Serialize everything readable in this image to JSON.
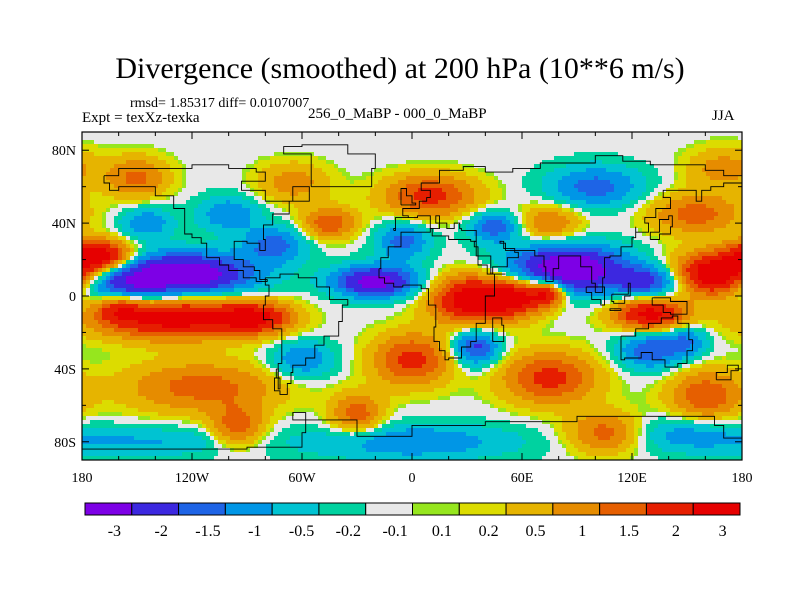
{
  "title": "Divergence (smoothed) at 200 hPa (10**6 m/s)",
  "stats_text": "rmsd= 1.85317 diff= 0.0107007",
  "left_label": "Expt = texXz-texka",
  "center_label": "256_0_MaBP - 000_0_MaBP",
  "right_label": "JJA",
  "chart_data": {
    "type": "heatmap",
    "title": "Divergence (smoothed) at 200 hPa (10**6 m/s)",
    "variable": "200 hPa divergence difference (smoothed)",
    "units": "10**6 m/s",
    "season": "JJA",
    "xlim": [
      -180,
      180
    ],
    "ylim": [
      -90,
      90
    ],
    "x_ticks": [
      {
        "value": -180,
        "label": "180"
      },
      {
        "value": -120,
        "label": "120W"
      },
      {
        "value": -60,
        "label": "60W"
      },
      {
        "value": 0,
        "label": "0"
      },
      {
        "value": 60,
        "label": "60E"
      },
      {
        "value": 120,
        "label": "120E"
      },
      {
        "value": 180,
        "label": "180"
      }
    ],
    "y_ticks": [
      {
        "value": 80,
        "label": "80N"
      },
      {
        "value": 40,
        "label": "40N"
      },
      {
        "value": 0,
        "label": "0"
      },
      {
        "value": -40,
        "label": "40S"
      },
      {
        "value": -80,
        "label": "80S"
      }
    ],
    "colorbar": {
      "colors": [
        "#7d00e6",
        "#3c28e0",
        "#1e64e6",
        "#0096e6",
        "#00c3d2",
        "#00d2a0",
        "#e8e8e8",
        "#96e61e",
        "#dcdc00",
        "#e6b400",
        "#e68c00",
        "#e65f00",
        "#e61e00",
        "#e60000"
      ],
      "labels": [
        "-3",
        "-2",
        "-1.5",
        "-1",
        "-0.5",
        "-0.2",
        "-0.1",
        "0.1",
        "0.2",
        "0.5",
        "1",
        "1.5",
        "2",
        "3"
      ],
      "level_values": [
        -3,
        -2,
        -1.5,
        -1,
        -0.5,
        -0.2,
        -0.1,
        0.1,
        0.2,
        0.5,
        1,
        1.5,
        2,
        3
      ]
    },
    "features": [
      {
        "lon": -125,
        "lat": 12,
        "value": -3.5,
        "sx": 26,
        "sy": 8
      },
      {
        "lon": -160,
        "lat": 3,
        "value": -2.0,
        "sx": 15,
        "sy": 8
      },
      {
        "lon": -20,
        "lat": 8,
        "value": -3.0,
        "sx": 16,
        "sy": 6
      },
      {
        "lon": 85,
        "lat": 15,
        "value": -3.5,
        "sx": 22,
        "sy": 9
      },
      {
        "lon": 130,
        "lat": 8,
        "value": -2.0,
        "sx": 14,
        "sy": 6
      },
      {
        "lon": -5,
        "lat": 30,
        "value": -1.5,
        "sx": 10,
        "sy": 7
      },
      {
        "lon": 45,
        "lat": 38,
        "value": -1.6,
        "sx": 10,
        "sy": 6
      },
      {
        "lon": -75,
        "lat": 28,
        "value": -1.5,
        "sx": 12,
        "sy": 7
      },
      {
        "lon": -145,
        "lat": 40,
        "value": -1.2,
        "sx": 10,
        "sy": 6
      },
      {
        "lon": 100,
        "lat": 60,
        "value": -1.5,
        "sx": 18,
        "sy": 8
      },
      {
        "lon": -100,
        "lat": 45,
        "value": -1.2,
        "sx": 12,
        "sy": 7
      },
      {
        "lon": 35,
        "lat": -28,
        "value": -2.0,
        "sx": 9,
        "sy": 7
      },
      {
        "lon": 130,
        "lat": -30,
        "value": -1.7,
        "sx": 12,
        "sy": 7
      },
      {
        "lon": -60,
        "lat": -35,
        "value": -1.3,
        "sx": 12,
        "sy": 7
      },
      {
        "lon": 150,
        "lat": -25,
        "value": -1.2,
        "sx": 8,
        "sy": 6
      },
      {
        "lon": -150,
        "lat": -80,
        "value": -0.8,
        "sx": 40,
        "sy": 6
      },
      {
        "lon": 0,
        "lat": -80,
        "value": -1.2,
        "sx": 40,
        "sy": 7
      },
      {
        "lon": 150,
        "lat": -75,
        "value": -0.9,
        "sx": 20,
        "sy": 7
      },
      {
        "lon": -170,
        "lat": 22,
        "value": 3.2,
        "sx": 12,
        "sy": 6
      },
      {
        "lon": 165,
        "lat": 12,
        "value": 3.5,
        "sx": 16,
        "sy": 8
      },
      {
        "lon": -130,
        "lat": -12,
        "value": 3.0,
        "sx": 30,
        "sy": 8
      },
      {
        "lon": -160,
        "lat": -5,
        "value": 2.0,
        "sx": 10,
        "sy": 6
      },
      {
        "lon": -85,
        "lat": -12,
        "value": 2.2,
        "sx": 14,
        "sy": 6
      },
      {
        "lon": 35,
        "lat": -2,
        "value": 3.5,
        "sx": 16,
        "sy": 9
      },
      {
        "lon": 60,
        "lat": 0,
        "value": 2.2,
        "sx": 10,
        "sy": 7
      },
      {
        "lon": 130,
        "lat": -10,
        "value": 2.8,
        "sx": 14,
        "sy": 6
      },
      {
        "lon": 75,
        "lat": 2,
        "value": 2.5,
        "sx": 6,
        "sy": 5
      },
      {
        "lon": 0,
        "lat": -35,
        "value": 2.0,
        "sx": 15,
        "sy": 10
      },
      {
        "lon": 75,
        "lat": -45,
        "value": 2.0,
        "sx": 18,
        "sy": 10
      },
      {
        "lon": -115,
        "lat": -50,
        "value": 1.5,
        "sx": 30,
        "sy": 10
      },
      {
        "lon": 10,
        "lat": 55,
        "value": 2.0,
        "sx": 18,
        "sy": 8
      },
      {
        "lon": -45,
        "lat": 40,
        "value": 1.7,
        "sx": 10,
        "sy": 6
      },
      {
        "lon": 75,
        "lat": 40,
        "value": 1.3,
        "sx": 12,
        "sy": 7
      },
      {
        "lon": -150,
        "lat": 65,
        "value": 1.4,
        "sx": 12,
        "sy": 8
      },
      {
        "lon": -65,
        "lat": 62,
        "value": 1.0,
        "sx": 14,
        "sy": 8
      },
      {
        "lon": 155,
        "lat": 45,
        "value": 1.5,
        "sx": 18,
        "sy": 8
      },
      {
        "lon": 160,
        "lat": -55,
        "value": 1.7,
        "sx": 14,
        "sy": 10
      },
      {
        "lon": -95,
        "lat": -72,
        "value": 1.6,
        "sx": 10,
        "sy": 8
      },
      {
        "lon": -30,
        "lat": -65,
        "value": 1.6,
        "sx": 10,
        "sy": 8
      },
      {
        "lon": 105,
        "lat": -75,
        "value": 1.5,
        "sx": 14,
        "sy": 8
      },
      {
        "lon": 170,
        "lat": 70,
        "value": 1.0,
        "sx": 14,
        "sy": 8
      }
    ],
    "coastlines": [
      [
        [
          -168,
          66
        ],
        [
          -160,
          70
        ],
        [
          -140,
          70
        ],
        [
          -120,
          72
        ],
        [
          -100,
          70
        ],
        [
          -85,
          68
        ],
        [
          -80,
          63
        ],
        [
          -93,
          58
        ],
        [
          -80,
          52
        ],
        [
          -65,
          60
        ],
        [
          -56,
          52
        ],
        [
          -67,
          45
        ],
        [
          -76,
          39
        ],
        [
          -81,
          31
        ],
        [
          -80,
          25
        ],
        [
          -83,
          29
        ],
        [
          -90,
          30
        ],
        [
          -97,
          26
        ],
        [
          -97,
          20
        ],
        [
          -92,
          16
        ],
        [
          -86,
          14
        ],
        [
          -83,
          9
        ],
        [
          -79,
          8
        ],
        [
          -85,
          10
        ],
        [
          -92,
          14
        ],
        [
          -100,
          17
        ],
        [
          -105,
          21
        ],
        [
          -112,
          29
        ],
        [
          -115,
          32
        ],
        [
          -120,
          34
        ],
        [
          -124,
          40
        ],
        [
          -124,
          48
        ],
        [
          -130,
          55
        ],
        [
          -140,
          60
        ],
        [
          -150,
          60
        ],
        [
          -160,
          58
        ],
        [
          -165,
          62
        ],
        [
          -168,
          66
        ]
      ],
      [
        [
          -80,
          10
        ],
        [
          -72,
          12
        ],
        [
          -62,
          10
        ],
        [
          -52,
          5
        ],
        [
          -45,
          -2
        ],
        [
          -35,
          -5
        ],
        [
          -38,
          -14
        ],
        [
          -40,
          -22
        ],
        [
          -48,
          -27
        ],
        [
          -53,
          -34
        ],
        [
          -58,
          -38
        ],
        [
          -65,
          -42
        ],
        [
          -66,
          -48
        ],
        [
          -68,
          -54
        ],
        [
          -72,
          -52
        ],
        [
          -75,
          -45
        ],
        [
          -73,
          -37
        ],
        [
          -71,
          -30
        ],
        [
          -71,
          -18
        ],
        [
          -76,
          -13
        ],
        [
          -81,
          -5
        ],
        [
          -80,
          0
        ],
        [
          -78,
          6
        ],
        [
          -80,
          10
        ]
      ],
      [
        [
          -18,
          15
        ],
        [
          -17,
          21
        ],
        [
          -13,
          27
        ],
        [
          -6,
          35
        ],
        [
          10,
          37
        ],
        [
          11,
          33
        ],
        [
          20,
          31
        ],
        [
          30,
          31
        ],
        [
          32,
          30
        ],
        [
          35,
          22
        ],
        [
          43,
          12
        ],
        [
          51,
          12
        ],
        [
          45,
          0
        ],
        [
          40,
          -10
        ],
        [
          40,
          -15
        ],
        [
          35,
          -25
        ],
        [
          32,
          -28
        ],
        [
          27,
          -34
        ],
        [
          20,
          -35
        ],
        [
          18,
          -30
        ],
        [
          15,
          -25
        ],
        [
          12,
          -17
        ],
        [
          13,
          -5
        ],
        [
          9,
          4
        ],
        [
          5,
          6
        ],
        [
          -5,
          5
        ],
        [
          -10,
          7
        ],
        [
          -15,
          10
        ],
        [
          -18,
          15
        ]
      ],
      [
        [
          -10,
          36
        ],
        [
          -9,
          43
        ],
        [
          -2,
          44
        ],
        [
          -5,
          48
        ],
        [
          4,
          52
        ],
        [
          8,
          54
        ],
        [
          10,
          58
        ],
        [
          5,
          62
        ],
        [
          15,
          69
        ],
        [
          28,
          71
        ],
        [
          40,
          68
        ],
        [
          55,
          70
        ],
        [
          70,
          73
        ],
        [
          80,
          73
        ],
        [
          100,
          77
        ],
        [
          115,
          74
        ],
        [
          130,
          72
        ],
        [
          142,
          72
        ],
        [
          160,
          69
        ],
        [
          170,
          66
        ],
        [
          180,
          66
        ],
        [
          180,
          62
        ],
        [
          170,
          60
        ],
        [
          163,
          58
        ],
        [
          158,
          52
        ],
        [
          155,
          58
        ],
        [
          142,
          58
        ],
        [
          137,
          54
        ],
        [
          141,
          48
        ],
        [
          133,
          43
        ],
        [
          127,
          40
        ],
        [
          129,
          35
        ],
        [
          126,
          35
        ],
        [
          122,
          38
        ],
        [
          122,
          32
        ],
        [
          120,
          27
        ],
        [
          114,
          22
        ],
        [
          108,
          21
        ],
        [
          105,
          10
        ],
        [
          104,
          2
        ],
        [
          100,
          7
        ],
        [
          98,
          16
        ],
        [
          94,
          16
        ],
        [
          92,
          22
        ],
        [
          88,
          22
        ],
        [
          80,
          15
        ],
        [
          77,
          8
        ],
        [
          73,
          16
        ],
        [
          72,
          22
        ],
        [
          67,
          25
        ],
        [
          58,
          25
        ],
        [
          56,
          26
        ],
        [
          50,
          30
        ],
        [
          48,
          29
        ],
        [
          51,
          25
        ],
        [
          56,
          24
        ],
        [
          58,
          21
        ],
        [
          52,
          16
        ],
        [
          44,
          12
        ],
        [
          41,
          17
        ],
        [
          36,
          27
        ],
        [
          34,
          30
        ],
        [
          35,
          36
        ],
        [
          27,
          37
        ],
        [
          26,
          40
        ],
        [
          23,
          37
        ],
        [
          19,
          40
        ],
        [
          13,
          44
        ],
        [
          15,
          37
        ],
        [
          10,
          44
        ],
        [
          3,
          43
        ],
        [
          -9,
          37
        ],
        [
          -10,
          36
        ]
      ],
      [
        [
          114,
          -22
        ],
        [
          122,
          -18
        ],
        [
          129,
          -15
        ],
        [
          136,
          -12
        ],
        [
          142,
          -11
        ],
        [
          145,
          -15
        ],
        [
          151,
          -24
        ],
        [
          153,
          -30
        ],
        [
          150,
          -37
        ],
        [
          145,
          -39
        ],
        [
          138,
          -35
        ],
        [
          131,
          -31
        ],
        [
          125,
          -34
        ],
        [
          116,
          -35
        ],
        [
          114,
          -30
        ],
        [
          114,
          -22
        ]
      ],
      [
        [
          -180,
          -84
        ],
        [
          -90,
          -83
        ],
        [
          -60,
          -75
        ],
        [
          -58,
          -64
        ],
        [
          -65,
          -68
        ],
        [
          -30,
          -77
        ],
        [
          0,
          -71
        ],
        [
          40,
          -69
        ],
        [
          90,
          -66
        ],
        [
          130,
          -66
        ],
        [
          165,
          -71
        ],
        [
          170,
          -78
        ],
        [
          180,
          -84
        ]
      ],
      [
        [
          -55,
          60
        ],
        [
          -42,
          60
        ],
        [
          -22,
          70
        ],
        [
          -20,
          78
        ],
        [
          -35,
          83
        ],
        [
          -60,
          82
        ],
        [
          -70,
          78
        ],
        [
          -55,
          70
        ],
        [
          -55,
          60
        ]
      ],
      [
        [
          44,
          -25
        ],
        [
          50,
          -16
        ],
        [
          49,
          -12
        ],
        [
          44,
          -16
        ],
        [
          44,
          -25
        ]
      ],
      [
        [
          -6,
          50
        ],
        [
          2,
          51
        ],
        [
          0,
          55
        ],
        [
          -3,
          59
        ],
        [
          -6,
          57
        ],
        [
          -6,
          50
        ]
      ],
      [
        [
          130,
          31
        ],
        [
          135,
          34
        ],
        [
          141,
          38
        ],
        [
          142,
          44
        ],
        [
          140,
          42
        ],
        [
          135,
          35
        ],
        [
          130,
          31
        ]
      ],
      [
        [
          95,
          5
        ],
        [
          105,
          -5
        ],
        [
          103,
          -2
        ],
        [
          98,
          2
        ],
        [
          95,
          5
        ]
      ],
      [
        [
          110,
          -7
        ],
        [
          114,
          -8
        ],
        [
          108,
          -7
        ],
        [
          110,
          -7
        ]
      ],
      [
        [
          109,
          1
        ],
        [
          118,
          7
        ],
        [
          119,
          0
        ],
        [
          116,
          -4
        ],
        [
          110,
          -3
        ],
        [
          109,
          1
        ]
      ],
      [
        [
          131,
          -1
        ],
        [
          141,
          -3
        ],
        [
          150,
          -10
        ],
        [
          141,
          -9
        ],
        [
          137,
          -5
        ],
        [
          131,
          -1
        ]
      ],
      [
        [
          166,
          -46
        ],
        [
          174,
          -41
        ],
        [
          178,
          -38
        ],
        [
          172,
          -42
        ],
        [
          166,
          -46
        ]
      ],
      [
        [
          -74,
          -40
        ],
        [
          -73,
          -51
        ],
        [
          -72,
          -45
        ],
        [
          -74,
          -40
        ]
      ]
    ]
  }
}
